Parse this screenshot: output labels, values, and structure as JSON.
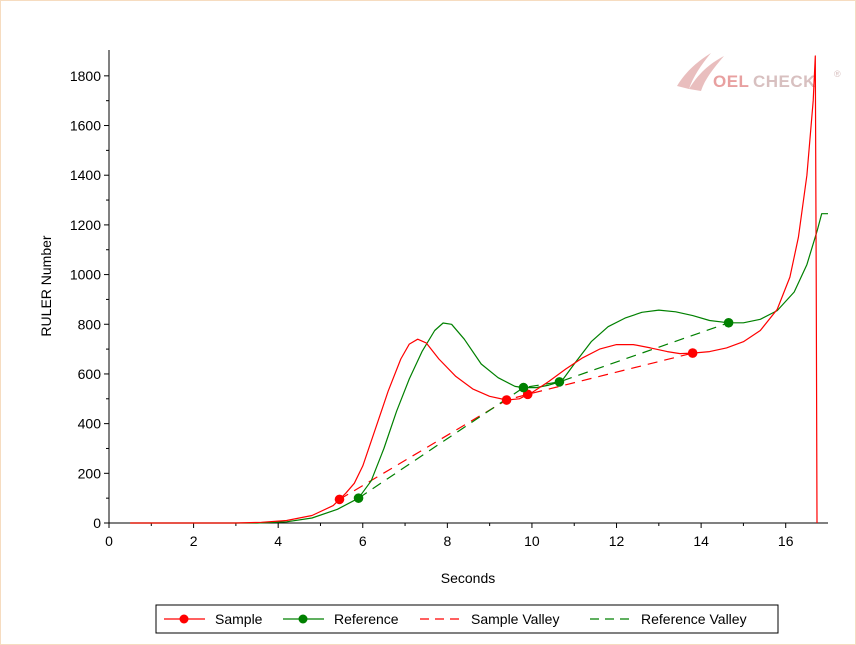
{
  "watermark": {
    "text_oel": "OEL",
    "text_check": "CHECK",
    "reg_mark": "®",
    "logo_icon": "swoosh-logo-icon"
  },
  "chart_data": {
    "type": "line",
    "title": "",
    "xlabel": "Seconds",
    "ylabel": "RULER Number",
    "xlim": [
      0,
      17
    ],
    "ylim": [
      0,
      1900
    ],
    "x_ticks": [
      0,
      2,
      4,
      6,
      8,
      10,
      12,
      14,
      16
    ],
    "y_ticks": [
      0,
      200,
      400,
      600,
      800,
      1000,
      1200,
      1400,
      1600,
      1800
    ],
    "grid": false,
    "legend_position": "bottom",
    "series": [
      {
        "name": "Sample",
        "color": "#ff0000",
        "style": "solid",
        "points": [
          [
            0.5,
            0
          ],
          [
            3.0,
            0
          ],
          [
            3.6,
            3
          ],
          [
            4.2,
            10
          ],
          [
            4.8,
            30
          ],
          [
            5.3,
            70
          ],
          [
            5.6,
            120
          ],
          [
            5.8,
            160
          ],
          [
            6.0,
            230
          ],
          [
            6.3,
            380
          ],
          [
            6.6,
            530
          ],
          [
            6.9,
            660
          ],
          [
            7.1,
            720
          ],
          [
            7.3,
            740
          ],
          [
            7.5,
            725
          ],
          [
            7.8,
            660
          ],
          [
            8.2,
            590
          ],
          [
            8.6,
            540
          ],
          [
            9.0,
            510
          ],
          [
            9.4,
            495
          ],
          [
            9.7,
            500
          ],
          [
            10.0,
            525
          ],
          [
            10.4,
            570
          ],
          [
            10.8,
            620
          ],
          [
            11.2,
            665
          ],
          [
            11.6,
            700
          ],
          [
            12.0,
            718
          ],
          [
            12.4,
            718
          ],
          [
            12.8,
            705
          ],
          [
            13.2,
            690
          ],
          [
            13.5,
            682
          ],
          [
            13.8,
            684
          ],
          [
            14.2,
            690
          ],
          [
            14.6,
            705
          ],
          [
            15.0,
            730
          ],
          [
            15.4,
            775
          ],
          [
            15.8,
            860
          ],
          [
            16.1,
            990
          ],
          [
            16.3,
            1150
          ],
          [
            16.5,
            1400
          ],
          [
            16.65,
            1700
          ],
          [
            16.7,
            1880
          ],
          [
            16.72,
            1000
          ],
          [
            16.74,
            0
          ]
        ],
        "markers": [
          [
            5.45,
            95
          ],
          [
            9.4,
            495
          ],
          [
            9.9,
            518
          ],
          [
            13.8,
            684
          ]
        ]
      },
      {
        "name": "Reference",
        "color": "#008000",
        "style": "solid",
        "points": [
          [
            0.5,
            0
          ],
          [
            3.5,
            0
          ],
          [
            4.2,
            5
          ],
          [
            4.8,
            20
          ],
          [
            5.4,
            55
          ],
          [
            5.9,
            100
          ],
          [
            6.2,
            170
          ],
          [
            6.5,
            300
          ],
          [
            6.8,
            450
          ],
          [
            7.1,
            580
          ],
          [
            7.4,
            690
          ],
          [
            7.7,
            775
          ],
          [
            7.9,
            805
          ],
          [
            8.1,
            800
          ],
          [
            8.4,
            740
          ],
          [
            8.8,
            640
          ],
          [
            9.2,
            585
          ],
          [
            9.6,
            550
          ],
          [
            9.8,
            545
          ],
          [
            10.1,
            545
          ],
          [
            10.4,
            555
          ],
          [
            10.7,
            570
          ],
          [
            11.0,
            640
          ],
          [
            11.4,
            730
          ],
          [
            11.8,
            790
          ],
          [
            12.2,
            825
          ],
          [
            12.6,
            848
          ],
          [
            13.0,
            857
          ],
          [
            13.4,
            850
          ],
          [
            13.8,
            835
          ],
          [
            14.2,
            815
          ],
          [
            14.65,
            806
          ],
          [
            15.0,
            806
          ],
          [
            15.4,
            820
          ],
          [
            15.8,
            855
          ],
          [
            16.2,
            930
          ],
          [
            16.5,
            1040
          ],
          [
            16.75,
            1180
          ],
          [
            16.85,
            1245
          ],
          [
            17.0,
            1245
          ]
        ],
        "markers": [
          [
            5.9,
            100
          ],
          [
            9.8,
            545
          ],
          [
            10.65,
            568
          ],
          [
            14.65,
            806
          ]
        ]
      },
      {
        "name": "Sample Valley",
        "color": "#ff0000",
        "style": "dashed",
        "points": [
          [
            5.45,
            95
          ],
          [
            9.4,
            495
          ],
          [
            9.9,
            518
          ],
          [
            13.8,
            684
          ]
        ]
      },
      {
        "name": "Reference Valley",
        "color": "#008000",
        "style": "dashed",
        "points": [
          [
            5.9,
            100
          ],
          [
            9.8,
            545
          ],
          [
            10.65,
            568
          ],
          [
            14.65,
            806
          ]
        ]
      }
    ]
  }
}
